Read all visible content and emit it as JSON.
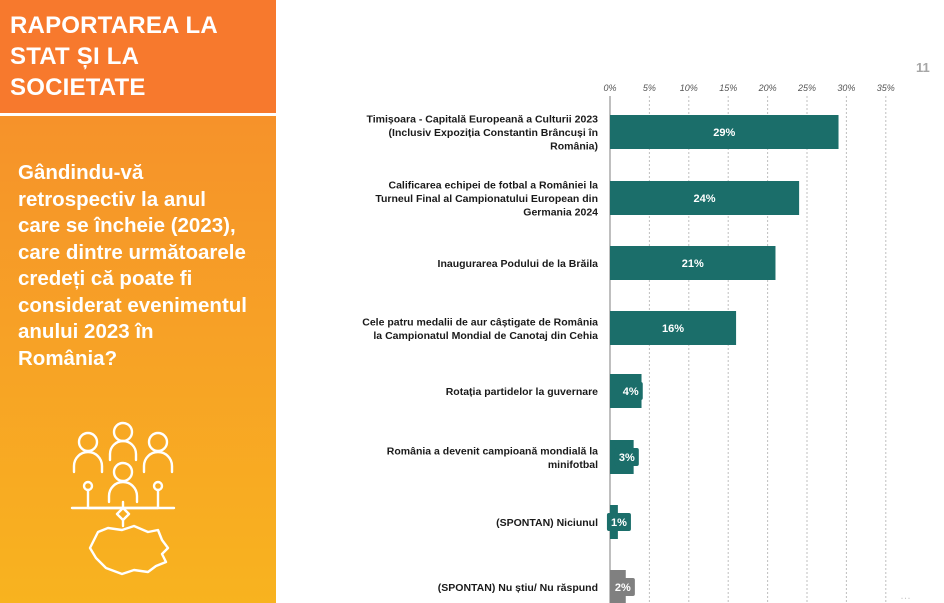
{
  "sidebar": {
    "title": "RAPORTAREA LA\nSTAT ȘI LA\nSOCIETATE",
    "question": "Gândindu-vă retrospectiv la anul care se încheie (2023), care dintre următoarele credeți că poate fi considerat evenimentul anului 2023 în România?",
    "icon": "people-network-romania-map-icon"
  },
  "page_number": "11",
  "colors": {
    "bar": "#1b6e6a",
    "bar_muted": "#808080",
    "accent": "#f7792d"
  },
  "chart_data": {
    "type": "bar",
    "orientation": "horizontal",
    "xlim": [
      0,
      35
    ],
    "ticks": [
      "0%",
      "5%",
      "10%",
      "15%",
      "20%",
      "25%",
      "30%",
      "35%"
    ],
    "grid": "vertical-dashed",
    "categories": [
      [
        "Timișoara - Capitală Europeană a Culturii 2023",
        "(Inclusiv Expoziția  Constantin Brâncuși în",
        "România)"
      ],
      [
        "Calificarea echipei de fotbal a României la",
        "Turneul Final al Campionatului European din",
        "Germania 2024"
      ],
      [
        "Inaugurarea Podului de la Brăila"
      ],
      [
        "Cele patru medalii de aur câștigate de România",
        "la Campionatul Mondial de Canotaj din Cehia"
      ],
      [
        "Rotația partidelor la guvernare"
      ],
      [
        "România a devenit campioană mondială la",
        "minifotbal"
      ],
      [
        "(SPONTAN) Niciunul"
      ],
      [
        "(SPONTAN) Nu știu/ Nu răspund"
      ]
    ],
    "values": [
      29,
      24,
      21,
      16,
      4,
      3,
      1,
      2
    ],
    "value_labels": [
      "29%",
      "24%",
      "21%",
      "16%",
      "4%",
      "3%",
      "1%",
      "2%"
    ],
    "muted": [
      false,
      false,
      false,
      false,
      false,
      false,
      false,
      true
    ]
  }
}
